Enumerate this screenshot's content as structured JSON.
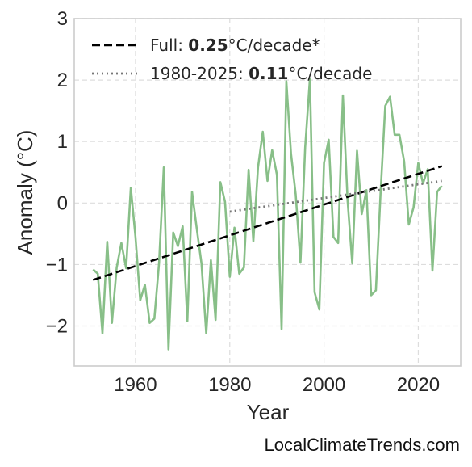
{
  "watermark": "LocalClimateTrends.com",
  "colors": {
    "series": "#88bf88",
    "full_trend": "#000000",
    "recent_trend": "#777777",
    "grid": "#dddddd",
    "frame": "#cccccc"
  },
  "chart_data": {
    "type": "line",
    "xlabel": "Year",
    "ylabel": "Anomaly (°C)",
    "xlim": [
      1947,
      2029
    ],
    "ylim": [
      -2.65,
      3.0
    ],
    "xticks": [
      1960,
      1980,
      2000,
      2020
    ],
    "yticks": [
      -2,
      -1,
      0,
      1,
      2,
      3
    ],
    "ytick_labels": [
      "−2",
      "−1",
      "0",
      "1",
      "2",
      "3"
    ],
    "grid": true,
    "legend_position": "top-left",
    "series": [
      {
        "x": [
          1951,
          1952,
          1953,
          1954,
          1955,
          1956,
          1957,
          1958,
          1959,
          1960,
          1961,
          1962,
          1963,
          1964,
          1965,
          1966,
          1967,
          1968,
          1969,
          1970,
          1971,
          1972,
          1973,
          1974,
          1975,
          1976,
          1977,
          1978,
          1979,
          1980,
          1981,
          1982,
          1983,
          1984,
          1985,
          1986,
          1987,
          1988,
          1989,
          1990,
          1991,
          1992,
          1993,
          1994,
          1995,
          1996,
          1997,
          1998,
          1999,
          2000,
          2001,
          2002,
          2003,
          2004,
          2005,
          2006,
          2007,
          2008,
          2009,
          2010,
          2011,
          2012,
          2013,
          2014,
          2015,
          2016,
          2017,
          2018,
          2019,
          2020,
          2021,
          2022,
          2023,
          2024,
          2025
        ],
        "y": [
          -1.08,
          -1.15,
          -2.12,
          -0.63,
          -1.95,
          -1.05,
          -0.65,
          -1.06,
          0.25,
          -0.55,
          -1.58,
          -1.33,
          -1.95,
          -1.88,
          -0.98,
          0.58,
          -2.38,
          -0.48,
          -0.7,
          -0.38,
          -1.92,
          0.18,
          -0.42,
          -0.98,
          -2.12,
          -0.93,
          -1.9,
          0.34,
          0.02,
          -1.2,
          -0.4,
          -1.15,
          -1.05,
          0.54,
          -0.62,
          0.58,
          1.16,
          0.36,
          0.86,
          0.46,
          -2.05,
          1.98,
          0.8,
          0.14,
          -0.97,
          0.9,
          2.02,
          -1.45,
          -1.73,
          0.65,
          1.03,
          -0.55,
          -0.65,
          1.75,
          0.04,
          -0.98,
          0.85,
          -0.18,
          0.21,
          -1.5,
          -1.42,
          0.16,
          1.58,
          1.73,
          1.11,
          1.11,
          0.68,
          -0.35,
          -0.07,
          0.65,
          0.32,
          0.55,
          -1.1,
          0.18,
          0.28
        ]
      }
    ],
    "trend_lines": [
      {
        "name": "full",
        "x": [
          1951,
          2025
        ],
        "y": [
          -1.25,
          0.6
        ],
        "label_prefix": "Full: ",
        "label_value": "0.25",
        "label_suffix": "°C/decade*",
        "style": "dashed"
      },
      {
        "name": "recent",
        "x": [
          1980,
          2025
        ],
        "y": [
          -0.14,
          0.36
        ],
        "label_prefix": "1980-2025: ",
        "label_value": "0.11",
        "label_suffix": "°C/decade",
        "style": "dotted"
      }
    ]
  }
}
